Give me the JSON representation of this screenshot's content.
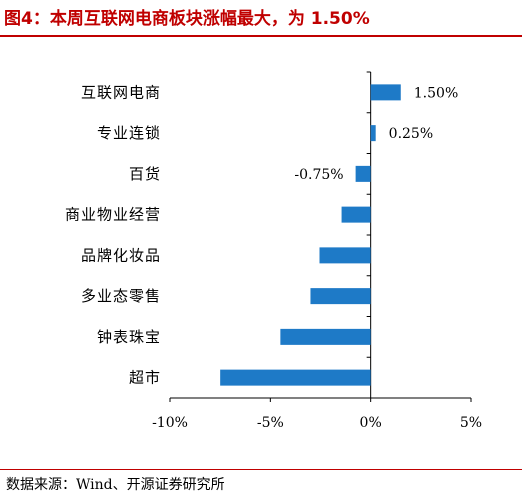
{
  "chart_data": {
    "type": "bar",
    "orientation": "horizontal",
    "title": "图4：本周互联网电商板块涨幅最大，为 1.50%",
    "categories": [
      "互联网电商",
      "专业连锁",
      "百货",
      "商业物业经营",
      "品牌化妆品",
      "多业态零售",
      "钟表珠宝",
      "超市"
    ],
    "values": [
      1.5,
      0.25,
      -0.75,
      -1.45,
      -2.55,
      -3.0,
      -4.5,
      -7.5
    ],
    "data_labels": [
      "1.50%",
      "0.25%",
      "-0.75%",
      null,
      null,
      null,
      null,
      null
    ],
    "x_ticks": [
      "-10%",
      "-5%",
      "0%",
      "5%"
    ],
    "x_tick_values": [
      -10,
      -5,
      0,
      5
    ],
    "xlim": [
      -10,
      5
    ],
    "grid": false,
    "legend": "none",
    "bar_color": "#1e7ac7",
    "title_color": "#c00000"
  },
  "source": "数据来源：Wind、开源证券研究所"
}
